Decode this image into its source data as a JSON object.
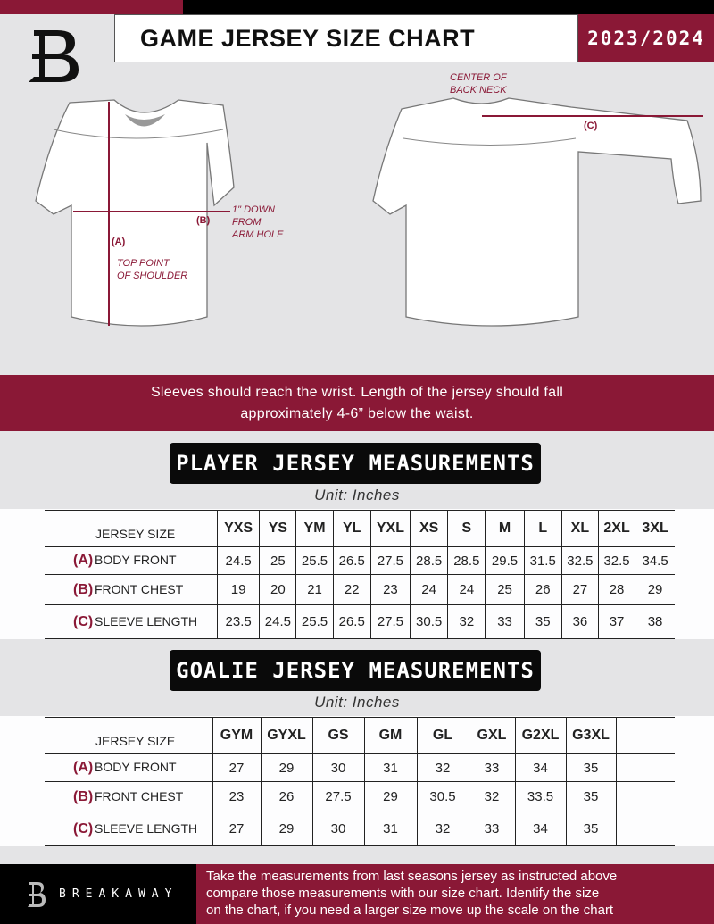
{
  "header": {
    "title": "GAME JERSEY SIZE CHART",
    "season": "2023/2024"
  },
  "diagram": {
    "center_back_neck": [
      "CENTER OF",
      "BACK NECK"
    ],
    "label_a": "(A)",
    "label_b": "(B)",
    "label_c": "(C)",
    "arm_hole_note": [
      "1\" DOWN",
      "FROM",
      "ARM HOLE"
    ],
    "shoulder_note": [
      "TOP POINT",
      "OF SHOULDER"
    ]
  },
  "banner": [
    "Sleeves should reach the wrist. Length of the jersey should fall",
    "approximately 4-6” below the waist."
  ],
  "player": {
    "title": "PLAYER JERSEY MEASUREMENTS",
    "unit": "Unit: Inches",
    "size_header": "JERSEY SIZE",
    "sizes": [
      "YXS",
      "YS",
      "YM",
      "YL",
      "YXL",
      "XS",
      "S",
      "M",
      "L",
      "XL",
      "2XL",
      "3XL"
    ],
    "rows": [
      {
        "letter": "(A)",
        "label": "BODY FRONT",
        "values": [
          "24.5",
          "25",
          "25.5",
          "26.5",
          "27.5",
          "28.5",
          "28.5",
          "29.5",
          "31.5",
          "32.5",
          "32.5",
          "34.5"
        ]
      },
      {
        "letter": "(B)",
        "label": "FRONT CHEST",
        "values": [
          "19",
          "20",
          "21",
          "22",
          "23",
          "24",
          "24",
          "25",
          "26",
          "27",
          "28",
          "29"
        ]
      },
      {
        "letter": "(C)",
        "label": "SLEEVE LENGTH",
        "values": [
          "23.5",
          "24.5",
          "25.5",
          "26.5",
          "27.5",
          "30.5",
          "32",
          "33",
          "35",
          "36",
          "37",
          "38"
        ]
      }
    ]
  },
  "goalie": {
    "title": "GOALIE JERSEY MEASUREMENTS",
    "unit": "Unit: Inches",
    "size_header": "JERSEY SIZE",
    "sizes": [
      "GYM",
      "GYXL",
      "GS",
      "GM",
      "GL",
      "GXL",
      "G2XL",
      "G3XL",
      ""
    ],
    "rows": [
      {
        "letter": "(A)",
        "label": "BODY FRONT",
        "values": [
          "27",
          "29",
          "30",
          "31",
          "32",
          "33",
          "34",
          "35",
          ""
        ]
      },
      {
        "letter": "(B)",
        "label": "FRONT CHEST",
        "values": [
          "23",
          "26",
          "27.5",
          "29",
          "30.5",
          "32",
          "33.5",
          "35",
          ""
        ]
      },
      {
        "letter": "(C)",
        "label": "SLEEVE LENGTH",
        "values": [
          "27",
          "29",
          "30",
          "31",
          "32",
          "33",
          "34",
          "35",
          ""
        ]
      }
    ]
  },
  "footer": {
    "brand": "BREAKAWAY",
    "text": [
      "Take the measurements from last seasons jersey as instructed above",
      "compare those measurements  with our size chart. Identify the size",
      "on the chart, if you need a larger size move up the scale on the chart"
    ]
  },
  "colors": {
    "accent": "#8a1836",
    "dark": "#000000",
    "background": "#e4e4e6"
  }
}
